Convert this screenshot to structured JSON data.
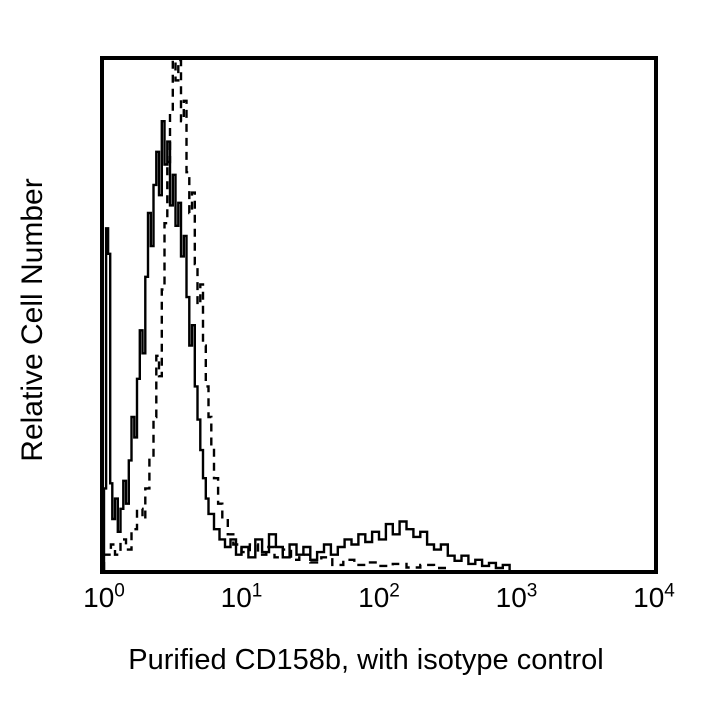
{
  "figure": {
    "background_color": "#ffffff",
    "frame_color": "#000000",
    "curve_color": "#000000"
  },
  "chart_data": {
    "type": "line",
    "subtype": "flow-cytometry-step-histogram-overlay",
    "title": "",
    "xlabel": "Purified CD158b, with isotype control",
    "ylabel": "Relative Cell Number",
    "x_scale": "log10",
    "x_range_decades": [
      0,
      4
    ],
    "ylim": [
      0,
      1
    ],
    "grid": false,
    "legend": "none",
    "x_ticks": [
      {
        "base": "10",
        "exp": "0"
      },
      {
        "base": "10",
        "exp": "1"
      },
      {
        "base": "10",
        "exp": "2"
      },
      {
        "base": "10",
        "exp": "3"
      },
      {
        "base": "10",
        "exp": "4"
      }
    ],
    "series": [
      {
        "name": "Purified CD158b (solid)",
        "style": "solid",
        "color": "#000000",
        "points": [
          [
            0.0,
            0.16
          ],
          [
            0.015,
            0.67
          ],
          [
            0.03,
            0.62
          ],
          [
            0.045,
            0.17
          ],
          [
            0.06,
            0.1
          ],
          [
            0.08,
            0.14
          ],
          [
            0.1,
            0.075
          ],
          [
            0.12,
            0.12
          ],
          [
            0.14,
            0.175
          ],
          [
            0.16,
            0.13
          ],
          [
            0.18,
            0.215
          ],
          [
            0.2,
            0.3
          ],
          [
            0.22,
            0.26
          ],
          [
            0.24,
            0.375
          ],
          [
            0.26,
            0.47
          ],
          [
            0.28,
            0.425
          ],
          [
            0.3,
            0.575
          ],
          [
            0.32,
            0.7
          ],
          [
            0.34,
            0.635
          ],
          [
            0.36,
            0.755
          ],
          [
            0.38,
            0.82
          ],
          [
            0.4,
            0.735
          ],
          [
            0.42,
            0.88
          ],
          [
            0.44,
            0.795
          ],
          [
            0.46,
            0.84
          ],
          [
            0.48,
            0.715
          ],
          [
            0.5,
            0.775
          ],
          [
            0.52,
            0.675
          ],
          [
            0.54,
            0.72
          ],
          [
            0.56,
            0.615
          ],
          [
            0.58,
            0.655
          ],
          [
            0.6,
            0.535
          ],
          [
            0.62,
            0.44
          ],
          [
            0.64,
            0.48
          ],
          [
            0.66,
            0.36
          ],
          [
            0.68,
            0.295
          ],
          [
            0.7,
            0.235
          ],
          [
            0.72,
            0.18
          ],
          [
            0.74,
            0.14
          ],
          [
            0.76,
            0.11
          ],
          [
            0.8,
            0.08
          ],
          [
            0.84,
            0.06
          ],
          [
            0.88,
            0.045
          ],
          [
            0.92,
            0.06
          ],
          [
            0.96,
            0.03
          ],
          [
            1.0,
            0.045
          ],
          [
            1.05,
            0.025
          ],
          [
            1.1,
            0.06
          ],
          [
            1.15,
            0.035
          ],
          [
            1.2,
            0.07
          ],
          [
            1.25,
            0.045
          ],
          [
            1.3,
            0.025
          ],
          [
            1.35,
            0.05
          ],
          [
            1.4,
            0.03
          ],
          [
            1.45,
            0.045
          ],
          [
            1.5,
            0.02
          ],
          [
            1.55,
            0.035
          ],
          [
            1.6,
            0.05
          ],
          [
            1.65,
            0.03
          ],
          [
            1.7,
            0.045
          ],
          [
            1.75,
            0.06
          ],
          [
            1.8,
            0.05
          ],
          [
            1.85,
            0.07
          ],
          [
            1.9,
            0.055
          ],
          [
            1.95,
            0.075
          ],
          [
            2.0,
            0.06
          ],
          [
            2.05,
            0.09
          ],
          [
            2.1,
            0.07
          ],
          [
            2.15,
            0.095
          ],
          [
            2.2,
            0.08
          ],
          [
            2.25,
            0.065
          ],
          [
            2.3,
            0.075
          ],
          [
            2.35,
            0.05
          ],
          [
            2.4,
            0.04
          ],
          [
            2.45,
            0.05
          ],
          [
            2.5,
            0.028
          ],
          [
            2.55,
            0.018
          ],
          [
            2.6,
            0.028
          ],
          [
            2.65,
            0.012
          ],
          [
            2.7,
            0.02
          ],
          [
            2.75,
            0.008
          ],
          [
            2.8,
            0.014
          ],
          [
            2.85,
            0.004
          ],
          [
            2.9,
            0.01
          ],
          [
            2.95,
            0.0
          ]
        ]
      },
      {
        "name": "Isotype control (dashed)",
        "style": "dashed",
        "color": "#000000",
        "points": [
          [
            0.0,
            0.03
          ],
          [
            0.05,
            0.05
          ],
          [
            0.08,
            0.03
          ],
          [
            0.12,
            0.06
          ],
          [
            0.16,
            0.04
          ],
          [
            0.2,
            0.08
          ],
          [
            0.24,
            0.12
          ],
          [
            0.28,
            0.1
          ],
          [
            0.3,
            0.16
          ],
          [
            0.33,
            0.22
          ],
          [
            0.36,
            0.3
          ],
          [
            0.38,
            0.42
          ],
          [
            0.4,
            0.38
          ],
          [
            0.42,
            0.55
          ],
          [
            0.44,
            0.68
          ],
          [
            0.46,
            0.8
          ],
          [
            0.48,
            0.9
          ],
          [
            0.5,
            1.0
          ],
          [
            0.52,
            0.96
          ],
          [
            0.54,
            1.0
          ],
          [
            0.56,
            0.88
          ],
          [
            0.58,
            0.92
          ],
          [
            0.6,
            0.78
          ],
          [
            0.62,
            0.7
          ],
          [
            0.64,
            0.74
          ],
          [
            0.66,
            0.6
          ],
          [
            0.68,
            0.52
          ],
          [
            0.7,
            0.56
          ],
          [
            0.72,
            0.44
          ],
          [
            0.74,
            0.36
          ],
          [
            0.76,
            0.3
          ],
          [
            0.78,
            0.24
          ],
          [
            0.8,
            0.18
          ],
          [
            0.83,
            0.13
          ],
          [
            0.86,
            0.1
          ],
          [
            0.9,
            0.07
          ],
          [
            0.94,
            0.05
          ],
          [
            1.0,
            0.035
          ],
          [
            1.06,
            0.05
          ],
          [
            1.12,
            0.03
          ],
          [
            1.18,
            0.045
          ],
          [
            1.24,
            0.025
          ],
          [
            1.3,
            0.04
          ],
          [
            1.36,
            0.02
          ],
          [
            1.42,
            0.03
          ],
          [
            1.5,
            0.015
          ],
          [
            1.58,
            0.025
          ],
          [
            1.66,
            0.01
          ],
          [
            1.74,
            0.02
          ],
          [
            1.82,
            0.01
          ],
          [
            1.9,
            0.015
          ],
          [
            2.0,
            0.008
          ],
          [
            2.1,
            0.012
          ],
          [
            2.2,
            0.005
          ],
          [
            2.3,
            0.01
          ],
          [
            2.4,
            0.004
          ],
          [
            2.5,
            0.0
          ]
        ]
      }
    ]
  }
}
